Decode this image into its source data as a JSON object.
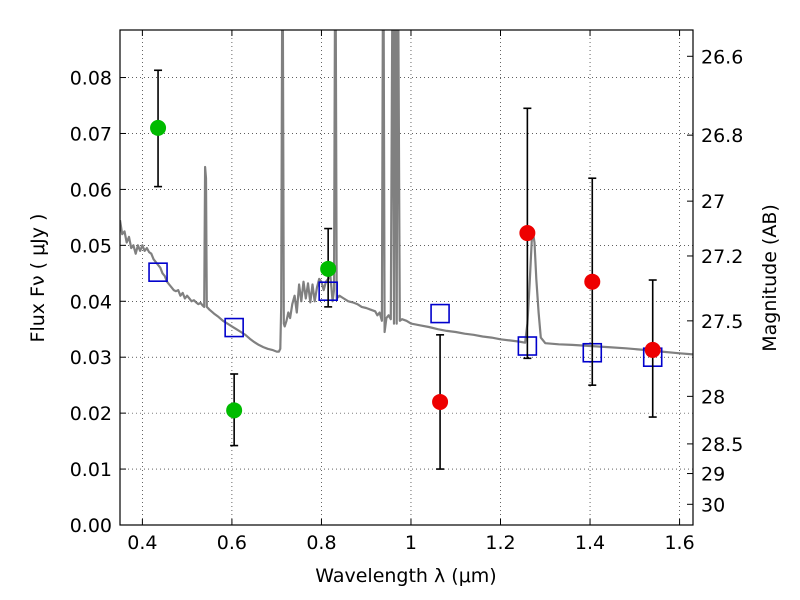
{
  "chart_data": {
    "type": "scatter",
    "xlabel": "Wavelength  λ (μm)",
    "ylabel": "Flux  Fν  ( μJy )",
    "ylabel_right": "Magnitude (AB)",
    "xlim": [
      0.35,
      1.63
    ],
    "ylim": [
      0.0,
      0.0885
    ],
    "grid": true,
    "x_ticks": [
      0.4,
      0.6,
      0.8,
      1.0,
      1.2,
      1.4,
      1.6
    ],
    "x_tick_labels": [
      "0.4",
      "0.6",
      "0.8",
      "1",
      "1.2",
      "1.4",
      "1.6"
    ],
    "y_ticks": [
      0.0,
      0.01,
      0.02,
      0.03,
      0.04,
      0.05,
      0.06,
      0.07,
      0.08
    ],
    "y_tick_labels": [
      "0.00",
      "0.01",
      "0.02",
      "0.03",
      "0.04",
      "0.05",
      "0.06",
      "0.07",
      "0.08"
    ],
    "right_ticks": [
      {
        "label": "26.6",
        "flux": 0.0838
      },
      {
        "label": "26.8",
        "flux": 0.0697
      },
      {
        "label": "27",
        "flux": 0.0579
      },
      {
        "label": "27.2",
        "flux": 0.0481
      },
      {
        "label": "27.5",
        "flux": 0.0365
      },
      {
        "label": "28",
        "flux": 0.023
      },
      {
        "label": "28.5",
        "flux": 0.0145
      },
      {
        "label": "29",
        "flux": 0.0092
      },
      {
        "label": "30",
        "flux": 0.0037
      }
    ],
    "series": [
      {
        "type": "line",
        "color": "#808080",
        "points": [
          [
            0.35,
            0.0545
          ],
          [
            0.355,
            0.052
          ],
          [
            0.36,
            0.0525
          ],
          [
            0.365,
            0.0505
          ],
          [
            0.37,
            0.0515
          ],
          [
            0.375,
            0.0495
          ],
          [
            0.38,
            0.05
          ],
          [
            0.385,
            0.0485
          ],
          [
            0.39,
            0.05
          ],
          [
            0.395,
            0.049
          ],
          [
            0.4,
            0.05
          ],
          [
            0.405,
            0.049
          ],
          [
            0.41,
            0.0495
          ],
          [
            0.415,
            0.0488
          ],
          [
            0.42,
            0.0485
          ],
          [
            0.425,
            0.0475
          ],
          [
            0.43,
            0.047
          ],
          [
            0.435,
            0.0465
          ],
          [
            0.44,
            0.046
          ],
          [
            0.445,
            0.045
          ],
          [
            0.45,
            0.0445
          ],
          [
            0.455,
            0.0435
          ],
          [
            0.46,
            0.043
          ],
          [
            0.465,
            0.0425
          ],
          [
            0.47,
            0.042
          ],
          [
            0.475,
            0.0418
          ],
          [
            0.48,
            0.042
          ],
          [
            0.485,
            0.041
          ],
          [
            0.49,
            0.0415
          ],
          [
            0.495,
            0.0405
          ],
          [
            0.5,
            0.041
          ],
          [
            0.505,
            0.0405
          ],
          [
            0.51,
            0.04
          ],
          [
            0.515,
            0.0402
          ],
          [
            0.52,
            0.0398
          ],
          [
            0.525,
            0.0395
          ],
          [
            0.53,
            0.0397
          ],
          [
            0.535,
            0.0392
          ],
          [
            0.538,
            0.039
          ],
          [
            0.54,
            0.064
          ],
          [
            0.542,
            0.062
          ],
          [
            0.544,
            0.039
          ],
          [
            0.55,
            0.0385
          ],
          [
            0.56,
            0.0378
          ],
          [
            0.57,
            0.0372
          ],
          [
            0.58,
            0.0365
          ],
          [
            0.59,
            0.036
          ],
          [
            0.6,
            0.0355
          ],
          [
            0.61,
            0.035
          ],
          [
            0.62,
            0.0345
          ],
          [
            0.63,
            0.034
          ],
          [
            0.64,
            0.0333
          ],
          [
            0.65,
            0.0327
          ],
          [
            0.66,
            0.0322
          ],
          [
            0.67,
            0.0318
          ],
          [
            0.68,
            0.0315
          ],
          [
            0.69,
            0.0313
          ],
          [
            0.7,
            0.031
          ],
          [
            0.705,
            0.031
          ],
          [
            0.708,
            0.0315
          ],
          [
            0.71,
            0.039
          ],
          [
            0.712,
            0.0885
          ],
          [
            0.714,
            0.0885
          ],
          [
            0.716,
            0.036
          ],
          [
            0.718,
            0.0355
          ],
          [
            0.722,
            0.0365
          ],
          [
            0.726,
            0.038
          ],
          [
            0.73,
            0.037
          ],
          [
            0.735,
            0.0395
          ],
          [
            0.74,
            0.041
          ],
          [
            0.745,
            0.038
          ],
          [
            0.75,
            0.043
          ],
          [
            0.755,
            0.04
          ],
          [
            0.76,
            0.0435
          ],
          [
            0.765,
            0.0405
          ],
          [
            0.77,
            0.0432
          ],
          [
            0.775,
            0.0398
          ],
          [
            0.78,
            0.043
          ],
          [
            0.785,
            0.04
          ],
          [
            0.79,
            0.0425
          ],
          [
            0.795,
            0.044
          ],
          [
            0.8,
            0.0435
          ],
          [
            0.805,
            0.042
          ],
          [
            0.81,
            0.0435
          ],
          [
            0.815,
            0.044
          ],
          [
            0.82,
            0.0445
          ],
          [
            0.825,
            0.04
          ],
          [
            0.828,
            0.042
          ],
          [
            0.83,
            0.0885
          ],
          [
            0.832,
            0.0885
          ],
          [
            0.834,
            0.0405
          ],
          [
            0.84,
            0.041
          ],
          [
            0.85,
            0.0405
          ],
          [
            0.86,
            0.04
          ],
          [
            0.87,
            0.0398
          ],
          [
            0.88,
            0.0395
          ],
          [
            0.89,
            0.039
          ],
          [
            0.9,
            0.0388
          ],
          [
            0.91,
            0.0385
          ],
          [
            0.92,
            0.0382
          ],
          [
            0.925,
            0.0375
          ],
          [
            0.93,
            0.038
          ],
          [
            0.935,
            0.0365
          ],
          [
            0.937,
            0.0885
          ],
          [
            0.939,
            0.0885
          ],
          [
            0.941,
            0.0345
          ],
          [
            0.945,
            0.037
          ],
          [
            0.95,
            0.0375
          ],
          [
            0.955,
            0.0368
          ],
          [
            0.958,
            0.0885
          ],
          [
            0.96,
            0.0885
          ],
          [
            0.962,
            0.036
          ],
          [
            0.964,
            0.0885
          ],
          [
            0.966,
            0.0885
          ],
          [
            0.968,
            0.036
          ],
          [
            0.97,
            0.0885
          ],
          [
            0.972,
            0.0885
          ],
          [
            0.975,
            0.0365
          ],
          [
            0.98,
            0.0368
          ],
          [
            0.99,
            0.0365
          ],
          [
            1.0,
            0.036
          ],
          [
            1.02,
            0.0357
          ],
          [
            1.04,
            0.0354
          ],
          [
            1.06,
            0.035
          ],
          [
            1.08,
            0.0347
          ],
          [
            1.1,
            0.0345
          ],
          [
            1.12,
            0.0342
          ],
          [
            1.14,
            0.034
          ],
          [
            1.16,
            0.0337
          ],
          [
            1.18,
            0.0335
          ],
          [
            1.2,
            0.0332
          ],
          [
            1.22,
            0.033
          ],
          [
            1.24,
            0.0328
          ],
          [
            1.255,
            0.0326
          ],
          [
            1.26,
            0.036
          ],
          [
            1.265,
            0.043
          ],
          [
            1.27,
            0.051
          ],
          [
            1.273,
            0.052
          ],
          [
            1.276,
            0.0505
          ],
          [
            1.28,
            0.044
          ],
          [
            1.285,
            0.038
          ],
          [
            1.29,
            0.0335
          ],
          [
            1.3,
            0.0325
          ],
          [
            1.33,
            0.0323
          ],
          [
            1.36,
            0.0322
          ],
          [
            1.4,
            0.032
          ],
          [
            1.44,
            0.0318
          ],
          [
            1.48,
            0.0316
          ],
          [
            1.52,
            0.0313
          ],
          [
            1.56,
            0.031
          ],
          [
            1.6,
            0.0307
          ],
          [
            1.63,
            0.0305
          ]
        ]
      },
      {
        "type": "model-box",
        "color": "#0000cc",
        "x": [
          0.435,
          0.605,
          0.815,
          1.065,
          1.26,
          1.405,
          1.54
        ],
        "y": [
          0.0452,
          0.0353,
          0.0418,
          0.0378,
          0.032,
          0.0308,
          0.03
        ]
      },
      {
        "type": "green-point",
        "color": "#00bb00",
        "x": [
          0.435,
          0.605,
          0.815
        ],
        "y": [
          0.071,
          0.0205,
          0.0458
        ],
        "yerr_low": [
          0.0605,
          0.0142,
          0.039
        ],
        "yerr_high": [
          0.0813,
          0.027,
          0.053
        ]
      },
      {
        "type": "red-point",
        "color": "#ee0000",
        "x": [
          1.065,
          1.26,
          1.405,
          1.54
        ],
        "y": [
          0.022,
          0.0522,
          0.0435,
          0.0313
        ],
        "yerr_low": [
          0.01,
          0.0298,
          0.025,
          0.0193
        ],
        "yerr_high": [
          0.034,
          0.0745,
          0.062,
          0.0438
        ]
      }
    ]
  }
}
